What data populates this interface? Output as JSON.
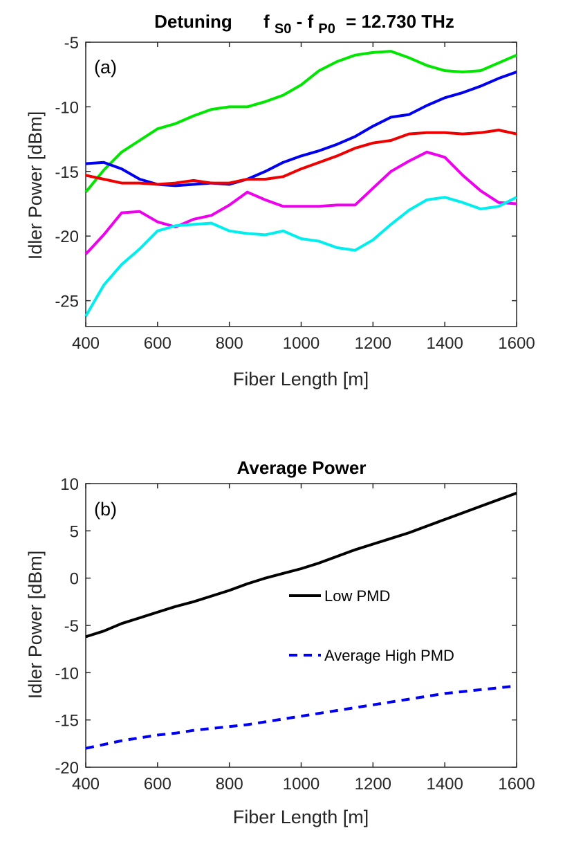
{
  "chart_data": [
    {
      "type": "line",
      "panel_label": "(a)",
      "title": {
        "prefix": "Detuning",
        "f1": "f",
        "sub1": "S0",
        "dash": "-",
        "f2": "f",
        "sub2": "P0",
        "suffix": "= 12.730 THz"
      },
      "xlabel": "Fiber Length [m]",
      "ylabel": "Idler Power [dBm]",
      "xlim": [
        400,
        1600
      ],
      "ylim": [
        -27,
        -5
      ],
      "xticks": [
        400,
        600,
        800,
        1000,
        1200,
        1400,
        1600
      ],
      "yticks": [
        -25,
        -20,
        -15,
        -10,
        -5
      ],
      "xtick_labels": [
        "400",
        "600",
        "800",
        "1000",
        "1200",
        "1400",
        "1600"
      ],
      "ytick_labels": [
        "-25",
        "-20",
        "-15",
        "-10",
        "-5"
      ],
      "series": [
        {
          "name": "green",
          "color": "#00e600",
          "dashed": false,
          "x": [
            400,
            450,
            500,
            550,
            600,
            650,
            700,
            750,
            800,
            850,
            900,
            950,
            1000,
            1050,
            1100,
            1150,
            1200,
            1250,
            1300,
            1350,
            1400,
            1450,
            1500,
            1550,
            1600
          ],
          "values": [
            -16.6,
            -14.9,
            -13.5,
            -12.6,
            -11.7,
            -11.3,
            -10.7,
            -10.2,
            -10.0,
            -10.0,
            -9.6,
            -9.1,
            -8.3,
            -7.2,
            -6.5,
            -6.0,
            -5.8,
            -5.7,
            -6.2,
            -6.8,
            -7.2,
            -7.3,
            -7.2,
            -6.6,
            -6.0
          ]
        },
        {
          "name": "blue",
          "color": "#0000ee",
          "dashed": false,
          "x": [
            400,
            450,
            500,
            550,
            600,
            650,
            700,
            750,
            800,
            850,
            900,
            950,
            1000,
            1050,
            1100,
            1150,
            1200,
            1250,
            1300,
            1350,
            1400,
            1450,
            1500,
            1550,
            1600
          ],
          "values": [
            -14.4,
            -14.3,
            -14.8,
            -15.6,
            -16.0,
            -16.1,
            -16.0,
            -15.9,
            -16.0,
            -15.6,
            -15.0,
            -14.3,
            -13.8,
            -13.4,
            -12.9,
            -12.3,
            -11.5,
            -10.8,
            -10.6,
            -9.9,
            -9.3,
            -8.9,
            -8.4,
            -7.8,
            -7.3
          ]
        },
        {
          "name": "red",
          "color": "#ee0000",
          "dashed": false,
          "x": [
            400,
            450,
            500,
            550,
            600,
            650,
            700,
            750,
            800,
            850,
            900,
            950,
            1000,
            1050,
            1100,
            1150,
            1200,
            1250,
            1300,
            1350,
            1400,
            1450,
            1500,
            1550,
            1600
          ],
          "values": [
            -15.3,
            -15.6,
            -15.9,
            -15.9,
            -16.0,
            -15.9,
            -15.7,
            -15.9,
            -15.9,
            -15.6,
            -15.6,
            -15.4,
            -14.8,
            -14.3,
            -13.8,
            -13.2,
            -12.8,
            -12.6,
            -12.1,
            -12.0,
            -12.0,
            -12.1,
            -12.0,
            -11.8,
            -12.1
          ]
        },
        {
          "name": "magenta",
          "color": "#ee00ee",
          "dashed": false,
          "x": [
            400,
            450,
            500,
            550,
            600,
            650,
            700,
            750,
            800,
            850,
            900,
            950,
            1000,
            1050,
            1100,
            1150,
            1200,
            1250,
            1300,
            1350,
            1400,
            1450,
            1500,
            1550,
            1600
          ],
          "values": [
            -21.4,
            -19.9,
            -18.2,
            -18.1,
            -18.9,
            -19.3,
            -18.7,
            -18.4,
            -17.6,
            -16.6,
            -17.2,
            -17.7,
            -17.7,
            -17.7,
            -17.6,
            -17.6,
            -16.3,
            -15.0,
            -14.2,
            -13.5,
            -13.9,
            -15.3,
            -16.5,
            -17.4,
            -17.5
          ]
        },
        {
          "name": "cyan",
          "color": "#00eeee",
          "dashed": false,
          "x": [
            400,
            450,
            500,
            550,
            600,
            650,
            700,
            750,
            800,
            850,
            900,
            950,
            1000,
            1050,
            1100,
            1150,
            1200,
            1250,
            1300,
            1350,
            1400,
            1450,
            1500,
            1550,
            1600
          ],
          "values": [
            -26.2,
            -23.8,
            -22.2,
            -21.0,
            -19.6,
            -19.2,
            -19.1,
            -19.0,
            -19.6,
            -19.8,
            -19.9,
            -19.6,
            -20.2,
            -20.4,
            -20.9,
            -21.1,
            -20.3,
            -19.1,
            -18.0,
            -17.2,
            -17.0,
            -17.4,
            -17.9,
            -17.7,
            -17.0
          ]
        }
      ]
    },
    {
      "type": "line",
      "panel_label": "(b)",
      "title": "Average Power",
      "xlabel": "Fiber Length [m]",
      "ylabel": "Idler Power [dBm]",
      "xlim": [
        400,
        1600
      ],
      "ylim": [
        -20,
        10
      ],
      "xticks": [
        400,
        600,
        800,
        1000,
        1200,
        1400,
        1600
      ],
      "yticks": [
        -20,
        -15,
        -10,
        -5,
        0,
        5,
        10
      ],
      "xtick_labels": [
        "400",
        "600",
        "800",
        "1000",
        "1200",
        "1400",
        "1600"
      ],
      "ytick_labels": [
        "-20",
        "-15",
        "-10",
        "-5",
        "0",
        "5",
        "10"
      ],
      "legend_position": "center-right",
      "series": [
        {
          "name": "Low PMD",
          "color": "#000000",
          "dashed": false,
          "x": [
            400,
            450,
            500,
            550,
            600,
            650,
            700,
            750,
            800,
            850,
            900,
            950,
            1000,
            1050,
            1100,
            1150,
            1200,
            1250,
            1300,
            1350,
            1400,
            1450,
            1500,
            1550,
            1600
          ],
          "values": [
            -6.2,
            -5.6,
            -4.8,
            -4.2,
            -3.6,
            -3.0,
            -2.5,
            -1.9,
            -1.3,
            -0.6,
            0.0,
            0.5,
            1.0,
            1.6,
            2.3,
            3.0,
            3.6,
            4.2,
            4.8,
            5.5,
            6.2,
            6.9,
            7.6,
            8.3,
            9.0
          ]
        },
        {
          "name": "Average High PMD",
          "color": "#0000ee",
          "dashed": true,
          "x": [
            400,
            450,
            500,
            550,
            600,
            650,
            700,
            750,
            800,
            850,
            900,
            950,
            1000,
            1050,
            1100,
            1150,
            1200,
            1250,
            1300,
            1350,
            1400,
            1450,
            1500,
            1550,
            1600
          ],
          "values": [
            -18.0,
            -17.6,
            -17.2,
            -16.9,
            -16.6,
            -16.4,
            -16.1,
            -15.9,
            -15.7,
            -15.5,
            -15.2,
            -14.9,
            -14.6,
            -14.3,
            -14.0,
            -13.7,
            -13.4,
            -13.1,
            -12.8,
            -12.5,
            -12.2,
            -12.0,
            -11.8,
            -11.6,
            -11.4
          ]
        }
      ]
    }
  ]
}
